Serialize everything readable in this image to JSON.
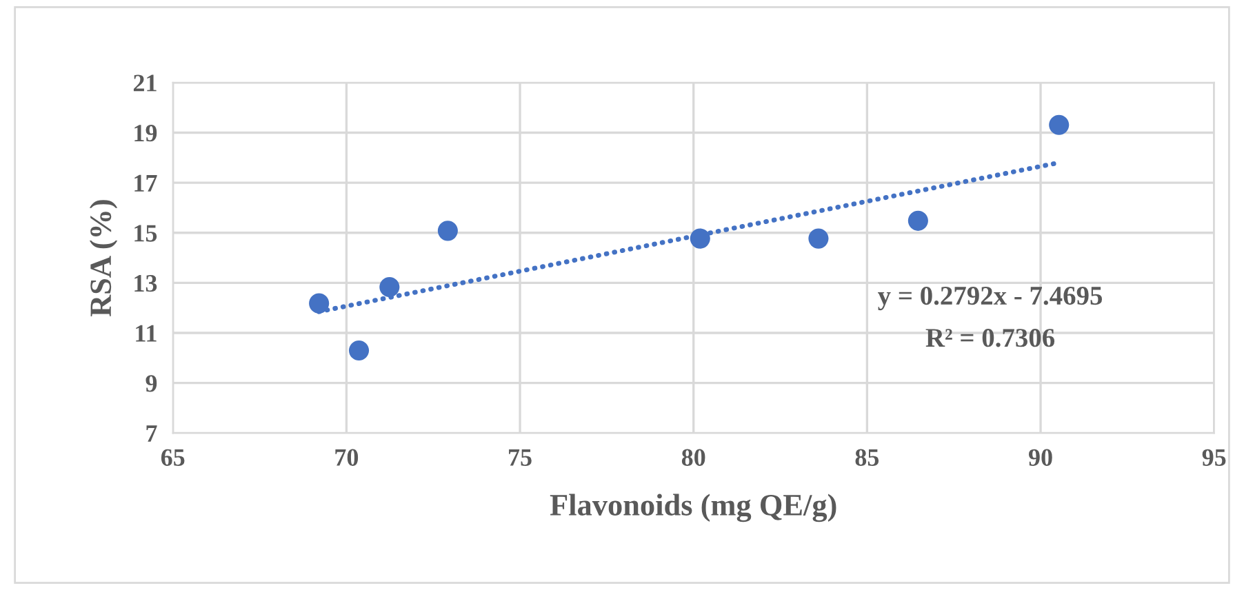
{
  "chart_data": {
    "type": "scatter",
    "xlabel": "Flavonoids (mg QE/g)",
    "ylabel": "RSA (%)",
    "xlim": [
      65,
      95
    ],
    "xticks": [
      65,
      70,
      75,
      80,
      85,
      90,
      95
    ],
    "ylim": [
      7,
      21
    ],
    "yticks": [
      7,
      9,
      11,
      13,
      15,
      17,
      19,
      21
    ],
    "grid": true,
    "legend": false,
    "series": [
      {
        "marker": "circle",
        "color": "#4472c4",
        "x": [
          69.21,
          70.36,
          71.24,
          72.92,
          80.19,
          83.6,
          86.47,
          90.53
        ],
        "values": [
          12.18,
          10.3,
          12.83,
          15.08,
          14.77,
          14.77,
          15.48,
          19.31
        ]
      },
      {
        "type": "line",
        "color": "#4472c4",
        "line_style": "dotted",
        "x": [
          69.21,
          90.38
        ],
        "values": [
          11.85,
          17.76
        ]
      }
    ],
    "annotations": [
      "y = 0.2792x - 7.4695",
      "R² = 0.7306"
    ]
  }
}
